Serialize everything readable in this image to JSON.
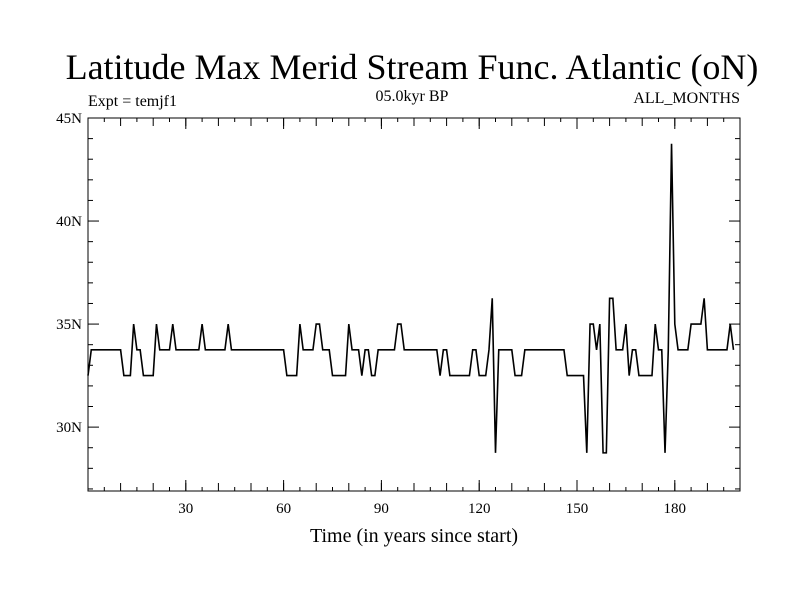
{
  "chart_data": {
    "type": "line",
    "title": "Latitude Max Merid Stream Func. Atlantic (oN)",
    "subtitle_left": "Expt = temjf1",
    "subtitle_center": "05.0kyr BP",
    "subtitle_right": "ALL_MONTHS",
    "xlabel": "Time (in years since start)",
    "ylabel": "",
    "xlim": [
      0,
      200
    ],
    "ylim": [
      26.9,
      45
    ],
    "x_ticks": [
      30,
      60,
      90,
      120,
      150,
      180
    ],
    "x_tick_labels": [
      "30",
      "60",
      "90",
      "120",
      "150",
      "180"
    ],
    "y_ticks": [
      30,
      35,
      40,
      45
    ],
    "y_tick_labels": [
      "30N",
      "35N",
      "40N",
      "45N"
    ],
    "grid": false,
    "series": [
      {
        "color": "#000000",
        "points": [
          [
            0,
            32.5
          ],
          [
            1,
            33.75
          ],
          [
            10,
            33.75
          ],
          [
            11,
            32.5
          ],
          [
            13,
            32.5
          ],
          [
            14,
            35.0
          ],
          [
            15,
            33.75
          ],
          [
            16,
            33.75
          ],
          [
            17,
            32.5
          ],
          [
            20,
            32.5
          ],
          [
            21,
            35.0
          ],
          [
            22,
            33.75
          ],
          [
            25,
            33.75
          ],
          [
            26,
            35.0
          ],
          [
            27,
            33.75
          ],
          [
            34,
            33.75
          ],
          [
            35,
            35.0
          ],
          [
            36,
            33.75
          ],
          [
            42,
            33.75
          ],
          [
            43,
            35.0
          ],
          [
            44,
            33.75
          ],
          [
            60,
            33.75
          ],
          [
            61,
            32.5
          ],
          [
            64,
            32.5
          ],
          [
            65,
            35.0
          ],
          [
            66,
            33.75
          ],
          [
            69,
            33.75
          ],
          [
            70,
            35.0
          ],
          [
            71,
            35.0
          ],
          [
            72,
            33.75
          ],
          [
            74,
            33.75
          ],
          [
            75,
            32.5
          ],
          [
            79,
            32.5
          ],
          [
            80,
            35.0
          ],
          [
            81,
            33.75
          ],
          [
            83,
            33.75
          ],
          [
            84,
            32.5
          ],
          [
            85,
            33.75
          ],
          [
            86,
            33.75
          ],
          [
            87,
            32.5
          ],
          [
            88,
            32.5
          ],
          [
            89,
            33.75
          ],
          [
            94,
            33.75
          ],
          [
            95,
            35.0
          ],
          [
            96,
            35.0
          ],
          [
            97,
            33.75
          ],
          [
            107,
            33.75
          ],
          [
            108,
            32.5
          ],
          [
            109,
            33.75
          ],
          [
            110,
            33.75
          ],
          [
            111,
            32.5
          ],
          [
            117,
            32.5
          ],
          [
            118,
            33.75
          ],
          [
            119,
            33.75
          ],
          [
            120,
            32.5
          ],
          [
            122,
            32.5
          ],
          [
            123,
            33.75
          ],
          [
            124,
            36.25
          ],
          [
            125,
            28.75
          ],
          [
            126,
            33.75
          ],
          [
            130,
            33.75
          ],
          [
            131,
            32.5
          ],
          [
            133,
            32.5
          ],
          [
            134,
            33.75
          ],
          [
            146,
            33.75
          ],
          [
            147,
            32.5
          ],
          [
            152,
            32.5
          ],
          [
            153,
            28.75
          ],
          [
            154,
            35.0
          ],
          [
            155,
            35.0
          ],
          [
            156,
            33.75
          ],
          [
            157,
            35.0
          ],
          [
            158,
            28.75
          ],
          [
            159,
            28.75
          ],
          [
            160,
            36.25
          ],
          [
            161,
            36.25
          ],
          [
            162,
            33.75
          ],
          [
            164,
            33.75
          ],
          [
            165,
            35.0
          ],
          [
            166,
            32.5
          ],
          [
            167,
            33.75
          ],
          [
            168,
            33.75
          ],
          [
            169,
            32.5
          ],
          [
            173,
            32.5
          ],
          [
            174,
            35.0
          ],
          [
            175,
            33.75
          ],
          [
            176,
            33.75
          ],
          [
            177,
            28.75
          ],
          [
            178,
            33.75
          ],
          [
            179,
            43.75
          ],
          [
            180,
            35.0
          ],
          [
            181,
            33.75
          ],
          [
            184,
            33.75
          ],
          [
            185,
            35.0
          ],
          [
            188,
            35.0
          ],
          [
            189,
            36.25
          ],
          [
            190,
            33.75
          ],
          [
            196,
            33.75
          ],
          [
            197,
            35.0
          ],
          [
            198,
            33.75
          ]
        ]
      }
    ]
  }
}
